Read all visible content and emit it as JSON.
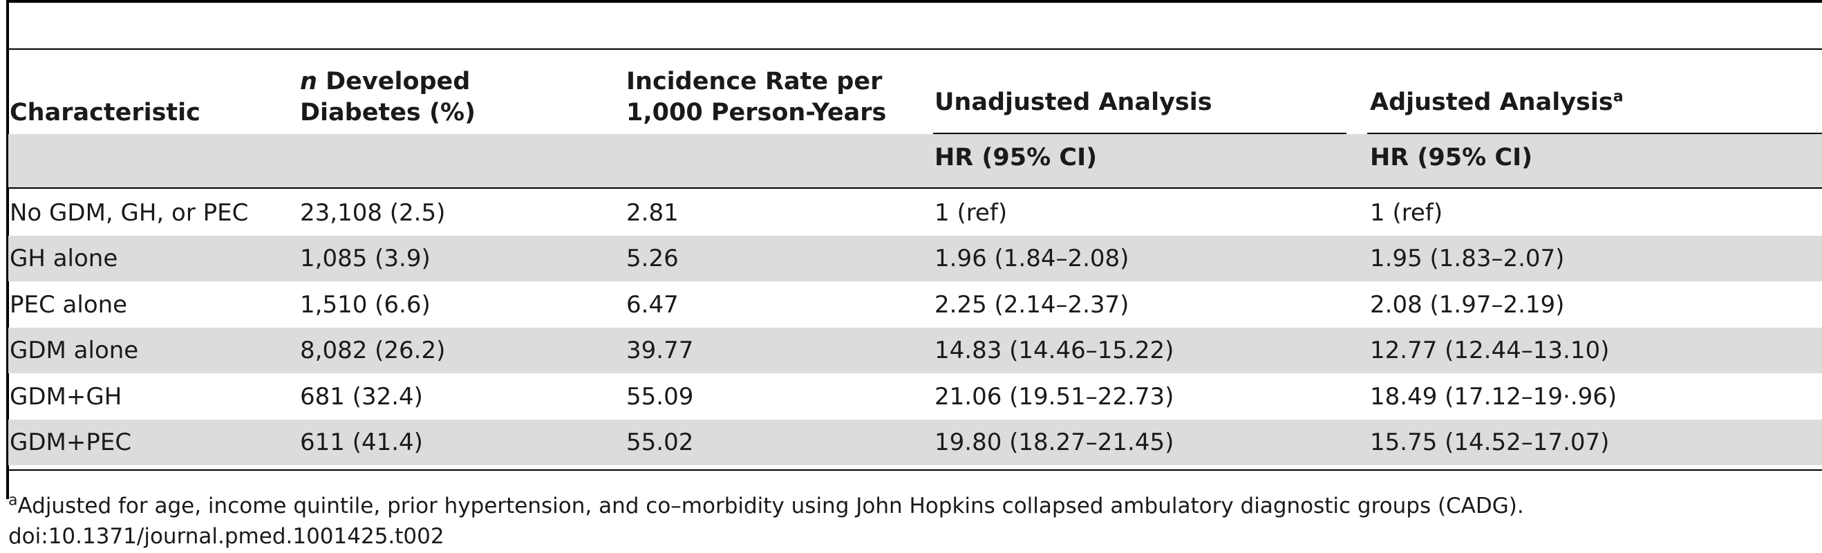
{
  "table": {
    "header": {
      "characteristic": "Characteristic",
      "n_developed_italic": "n",
      "n_developed_rest_line1": " Developed",
      "n_developed_line2": "Diabetes (%)",
      "incidence_line1": "Incidence Rate per",
      "incidence_line2": "1,000 Person-Years",
      "unadjusted": "Unadjusted Analysis",
      "adjusted": "Adjusted Analysis",
      "adjusted_sup": "a",
      "unadjusted_sub": "HR (95% CI)",
      "adjusted_sub": "HR (95% CI)"
    },
    "rows": [
      {
        "characteristic": "No GDM, GH, or PEC",
        "n": "23,108 (2.5)",
        "incidence": "2.81",
        "unadjusted": "1 (ref)",
        "adjusted": "1 (ref)"
      },
      {
        "characteristic": "GH alone",
        "n": "1,085 (3.9)",
        "incidence": "5.26",
        "unadjusted": "1.96 (1.84–2.08)",
        "adjusted": "1.95 (1.83–2.07)"
      },
      {
        "characteristic": "PEC alone",
        "n": "1,510 (6.6)",
        "incidence": "6.47",
        "unadjusted": "2.25 (2.14–2.37)",
        "adjusted": "2.08 (1.97–2.19)"
      },
      {
        "characteristic": "GDM alone",
        "n": "8,082 (26.2)",
        "incidence": "39.77",
        "unadjusted": "14.83 (14.46–15.22)",
        "adjusted": "12.77 (12.44–13.10)"
      },
      {
        "characteristic": "GDM+GH",
        "n": "681 (32.4)",
        "incidence": "55.09",
        "unadjusted": "21.06 (19.51–22.73)",
        "adjusted": "18.49 (17.12–19·.96)"
      },
      {
        "characteristic": "GDM+PEC",
        "n": "611 (41.4)",
        "incidence": "55.02",
        "unadjusted": "19.80 (18.27–21.45)",
        "adjusted": "15.75 (14.52–17.07)"
      }
    ]
  },
  "footnote": {
    "sup": "a",
    "text": "Adjusted for age, income quintile, prior hypertension, and co–morbidity using John Hopkins collapsed ambulatory diagnostic groups (CADG).",
    "doi": "doi:10.1371/journal.pmed.1001425.t002"
  },
  "colors": {
    "band": "#dcdcdc",
    "rule": "#000000",
    "text": "#1a1a1a"
  }
}
